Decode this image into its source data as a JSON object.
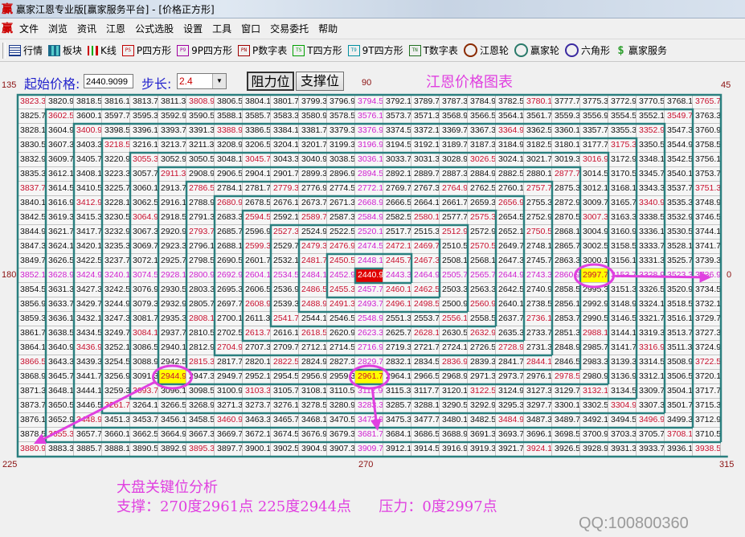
{
  "window": {
    "title": "赢家江恩专业版[赢家服务平台] - [价格正方形]",
    "logo": "赢"
  },
  "menu": {
    "logo": "赢",
    "items": [
      "文件",
      "浏览",
      "资讯",
      "江恩",
      "公式选股",
      "设置",
      "工具",
      "窗口",
      "交易委托",
      "帮助"
    ]
  },
  "toolbar": {
    "items": [
      {
        "label": "行情",
        "icon": "table-icon",
        "icon_text": "",
        "color": "#1a3a8a"
      },
      {
        "label": "板块",
        "icon": "blocks-icon",
        "icon_text": "",
        "color": "#1a6a8a"
      },
      {
        "label": "K线",
        "icon": "candlestick-icon",
        "icon_text": "",
        "color": "#c00000"
      },
      {
        "label": "P四方形",
        "icon": "ps-icon",
        "icon_text": "PS",
        "color": "#c00000"
      },
      {
        "label": "9P四方形",
        "icon": "p9-icon",
        "icon_text": "P9",
        "color": "#a000a0"
      },
      {
        "label": "P数字表",
        "icon": "pn-icon",
        "icon_text": "PN",
        "color": "#a00000"
      },
      {
        "label": "T四方形",
        "icon": "ts-icon",
        "icon_text": "TS",
        "color": "#00a000"
      },
      {
        "label": "9T四方形",
        "icon": "t9-icon",
        "icon_text": "T9",
        "color": "#0090a0"
      },
      {
        "label": "T数字表",
        "icon": "tn-icon",
        "icon_text": "TN",
        "color": "#207020"
      },
      {
        "label": "江恩轮",
        "icon": "gann-wheel-icon",
        "icon_text": "",
        "color": "#8a2a00"
      },
      {
        "label": "赢家轮",
        "icon": "winner-wheel-icon",
        "icon_text": "",
        "color": "#2a7a6a"
      },
      {
        "label": "六角形",
        "icon": "hexagon-icon",
        "icon_text": "",
        "color": "#3a2aa0"
      },
      {
        "label": "赢家服务",
        "icon": "dollar-icon",
        "icon_text": "$",
        "color": "#30a030"
      }
    ]
  },
  "controls": {
    "start_price_label": "起始价格:",
    "start_price": 2440.9099,
    "start_price_text": "2440.9099",
    "step_label": "步长:",
    "step": 2.4,
    "step_text": "2.4",
    "resistance_button": "阻力位",
    "support_button": "支撑位"
  },
  "chart_title": "江恩价格图表",
  "angles": {
    "a135": "135",
    "a90": "90",
    "a45": "45",
    "a180": "180",
    "a0": "0",
    "a225": "225",
    "a270": "270",
    "a315": "315"
  },
  "grid": {
    "size": 25,
    "highlighted": [
      "2997.70",
      "2944.90",
      "2961.70"
    ],
    "colors": {
      "normal": "#111111",
      "angle": "#c8102e",
      "cross": "#d020d0",
      "center_bg": "#e00000",
      "highlight_bg": "#ffff00",
      "spiral": "#2a7f7f",
      "annotation": "#e040e0"
    }
  },
  "watermark": "QQ:100800360",
  "analysis": {
    "heading": "大盘关键位分析",
    "line": "支撑：270度2961点 225度2944点      压力：0度2997点"
  }
}
